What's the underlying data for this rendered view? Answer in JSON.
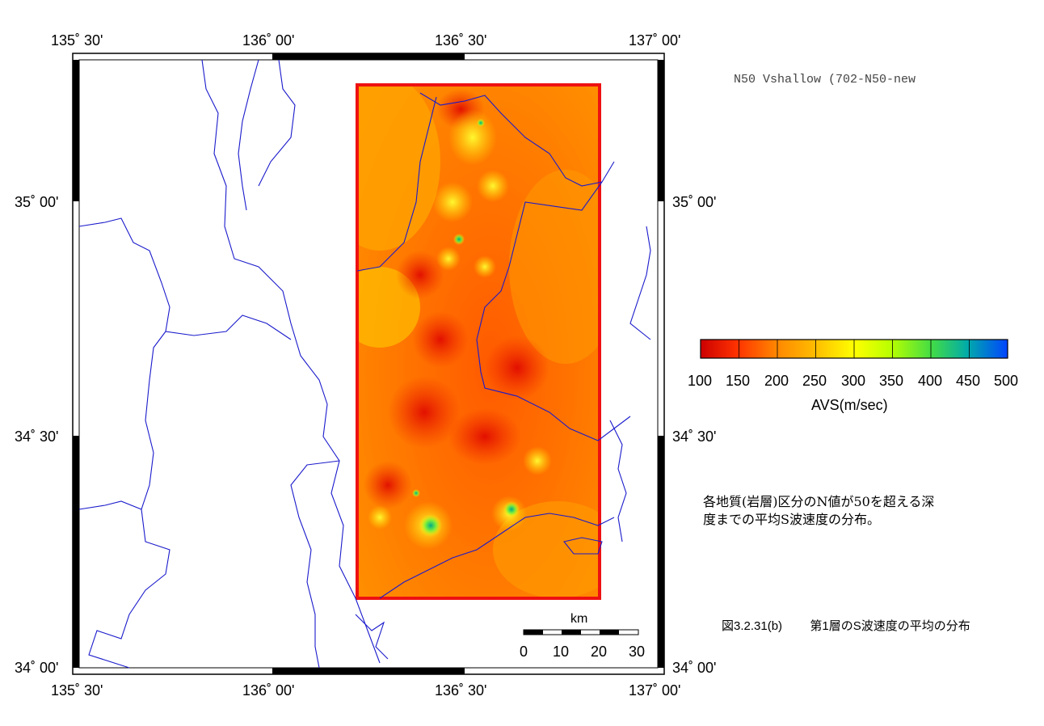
{
  "map": {
    "title": "N50 Vshallow (702-N50-new",
    "lon_ticks": [
      "135˚ 30'",
      "136˚ 00'",
      "136˚ 30'",
      "137˚ 00'"
    ],
    "lat_ticks": [
      "35˚ 00'",
      "34˚ 30'",
      "34˚ 00'"
    ],
    "colors": {
      "coast": "#1a1acc",
      "frame_border": "#ee1111"
    }
  },
  "colorbar": {
    "ticks": [
      "100",
      "150",
      "200",
      "250",
      "300",
      "350",
      "400",
      "450",
      "500"
    ],
    "label": "AVS(m/sec)",
    "range": [
      100,
      500
    ],
    "colors": [
      "#cc0000",
      "#ff3300",
      "#ff8800",
      "#ffbb00",
      "#ffff00",
      "#b8ff00",
      "#44dd44",
      "#00aaaa",
      "#0044ff"
    ]
  },
  "scalebar": {
    "unit": "km",
    "ticks": [
      "0",
      "10",
      "20",
      "30"
    ]
  },
  "description": {
    "line1": "各地質(岩層)区分のN値が50を超える深",
    "line2": "度までの平均S波速度の分布。"
  },
  "caption": {
    "figure": "図3.2.31(b)",
    "text": "第1層のS波速度の平均の分布"
  }
}
